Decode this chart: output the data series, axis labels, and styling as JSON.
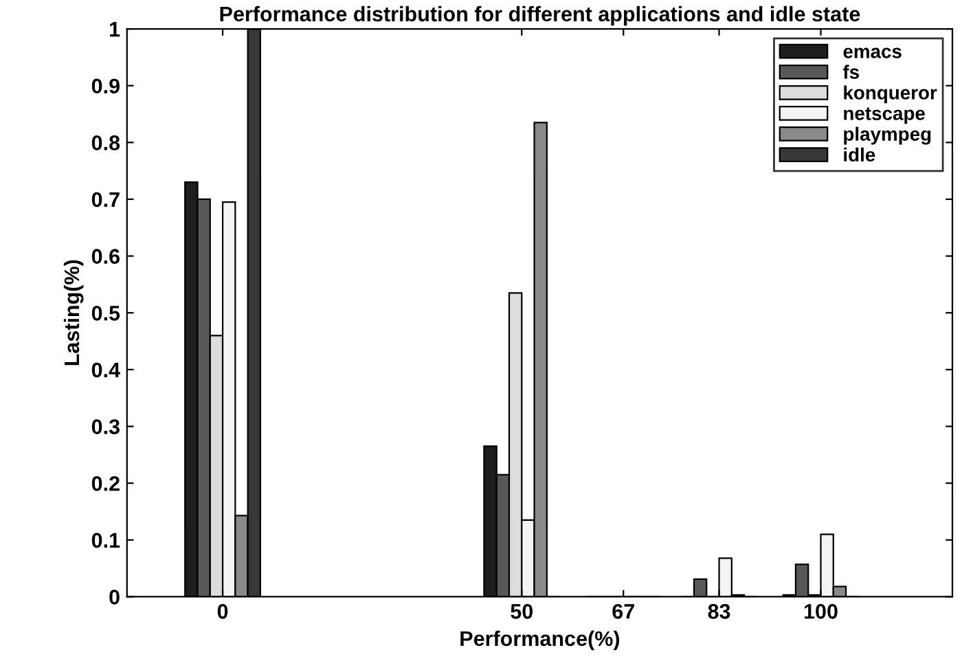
{
  "chart_data": {
    "type": "bar",
    "title": "Performance distribution for different applications and idle state",
    "xlabel": "Performance(%)",
    "ylabel": "Lasting(%)",
    "x": [
      0,
      50,
      67,
      83,
      100
    ],
    "series": [
      {
        "name": "emacs",
        "color": "#1e1e1e",
        "values": [
          0.73,
          0.265,
          0,
          0,
          0.003
        ]
      },
      {
        "name": "fs",
        "color": "#585858",
        "values": [
          0.7,
          0.215,
          0,
          0.031,
          0.057
        ]
      },
      {
        "name": "konqueror",
        "color": "#dcdcdc",
        "values": [
          0.46,
          0.535,
          0,
          0,
          0.003
        ]
      },
      {
        "name": "netscape",
        "color": "#f4f4f4",
        "values": [
          0.695,
          0.135,
          0,
          0.068,
          0.11
        ]
      },
      {
        "name": "plaympeg",
        "color": "#8a8a8a",
        "values": [
          0.143,
          0.835,
          0,
          0.003,
          0.018
        ]
      },
      {
        "name": "idle",
        "color": "#383838",
        "values": [
          1.0,
          0,
          0,
          0,
          0
        ]
      }
    ],
    "xlim": [
      -16,
      122
    ],
    "xticks": [
      0,
      50,
      67,
      83,
      100
    ],
    "ylim": [
      0,
      1
    ],
    "yticks": [
      0,
      0.1,
      0.2,
      0.3,
      0.4,
      0.5,
      0.6,
      0.7,
      0.8,
      0.9,
      1
    ],
    "legend": "top right",
    "grid": false
  }
}
